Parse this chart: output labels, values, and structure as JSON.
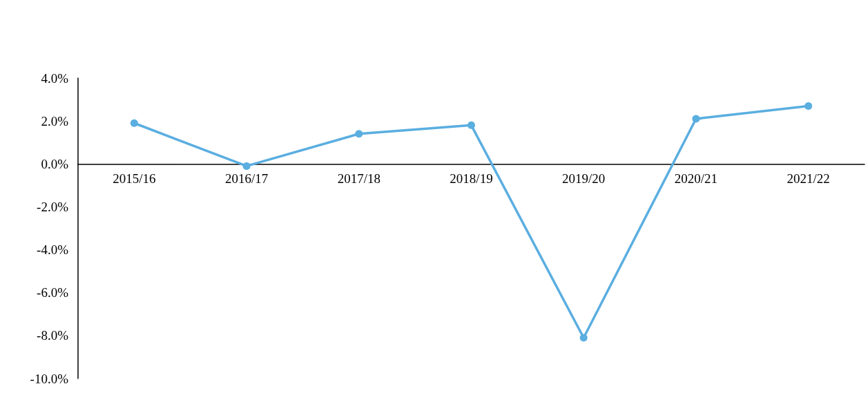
{
  "chart_data": {
    "type": "line",
    "categories": [
      "2015/16",
      "2016/17",
      "2017/18",
      "2018/19",
      "2019/20",
      "2020/21",
      "2021/22"
    ],
    "values": [
      1.9,
      -0.1,
      1.4,
      1.8,
      -8.1,
      2.1,
      2.7
    ],
    "color": "#5aaee0",
    "ylim": [
      -10,
      4
    ],
    "yticks": [
      {
        "value": 4,
        "label": "4.0%"
      },
      {
        "value": 2,
        "label": "2.0%"
      },
      {
        "value": 0,
        "label": "0.0%"
      },
      {
        "value": -2,
        "label": "-2.0%"
      },
      {
        "value": -4,
        "label": "-4.0%"
      },
      {
        "value": -6,
        "label": "-6.0%"
      },
      {
        "value": -8,
        "label": "-8.0%"
      },
      {
        "value": -10,
        "label": "-10.0%"
      }
    ],
    "grid": false,
    "marker": "circle",
    "line_style": "solid"
  }
}
